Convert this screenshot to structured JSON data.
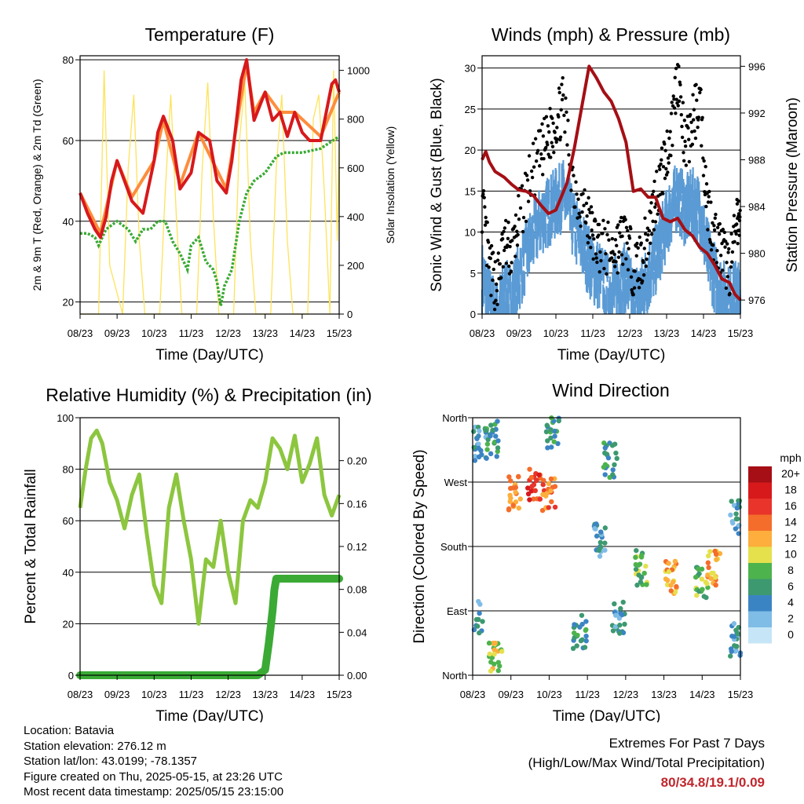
{
  "chart_data": [
    {
      "type": "line",
      "title": "Temperature (F)",
      "xlabel": "Time (Day/UTC)",
      "ylabel": "2m & 9m T (Red, Orange) & 2m Td (Green)",
      "y2label": "Solar Insolation (Yellow)",
      "x_ticks": [
        "08/23",
        "09/23",
        "10/23",
        "11/23",
        "12/23",
        "13/23",
        "14/23",
        "15/23"
      ],
      "ylim": [
        17,
        81
      ],
      "y_ticks": [
        20,
        40,
        60,
        80
      ],
      "y2lim": [
        0,
        1060
      ],
      "y2_ticks": [
        0,
        200,
        400,
        600,
        800,
        1000
      ],
      "grid": "horizontal",
      "series": [
        {
          "role": "2m T",
          "color": "#d7191c",
          "axis": "left",
          "x": [
            0,
            0.2,
            0.4,
            0.55,
            0.7,
            0.85,
            1.0,
            1.2,
            1.4,
            1.7,
            2.0,
            2.1,
            2.25,
            2.5,
            2.7,
            3.0,
            3.2,
            3.5,
            3.7,
            3.95,
            4.1,
            4.35,
            4.5,
            4.7,
            5.0,
            5.2,
            5.4,
            5.6,
            5.8,
            6.0,
            6.2,
            6.5,
            6.8,
            6.9,
            7.0
          ],
          "y": [
            47,
            42,
            38,
            36,
            41,
            50,
            55,
            50,
            45,
            42,
            55,
            62,
            66,
            60,
            48,
            52,
            62,
            60,
            50,
            47,
            55,
            75,
            80,
            65,
            72,
            65,
            67,
            61,
            67,
            62,
            60,
            60,
            74,
            75,
            72
          ]
        },
        {
          "role": "9m T",
          "color": "#fd8d3c",
          "axis": "left",
          "x": [
            0,
            0.55,
            1.0,
            1.4,
            2.0,
            2.25,
            2.7,
            3.2,
            3.95,
            4.5,
            4.7,
            5.0,
            5.4,
            5.8,
            6.5,
            7.0
          ],
          "y": [
            47,
            37,
            55,
            46,
            55,
            65,
            49,
            62,
            48,
            79,
            67,
            72,
            67,
            67,
            61,
            72
          ]
        },
        {
          "role": "2m Td",
          "color": "#3aaa35",
          "axis": "left",
          "x": [
            0,
            0.2,
            0.4,
            0.5,
            0.7,
            1.0,
            1.3,
            1.5,
            1.7,
            1.9,
            2.1,
            2.3,
            2.5,
            2.7,
            2.9,
            3.0,
            3.2,
            3.4,
            3.6,
            3.7,
            3.8,
            3.9,
            4.0,
            4.1,
            4.3,
            4.5,
            4.7,
            5.0,
            5.3,
            5.5,
            5.7,
            6.0,
            6.5,
            7.0
          ],
          "y": [
            37,
            37,
            36,
            34,
            38,
            40,
            38,
            35,
            38,
            38,
            40,
            40,
            35,
            32,
            28,
            34,
            36,
            30,
            28,
            25,
            19,
            24,
            26,
            28,
            40,
            47,
            50,
            52,
            56,
            57,
            57,
            57,
            58,
            61
          ]
        },
        {
          "role": "Solar Insolation",
          "color": "#fde35a",
          "axis": "right",
          "x": [
            0.0,
            0.15,
            0.3,
            0.5,
            0.65,
            0.8,
            1.15,
            1.3,
            1.45,
            1.6,
            1.75,
            2.15,
            2.3,
            2.45,
            2.6,
            2.75,
            3.15,
            3.3,
            3.45,
            3.6,
            3.75,
            4.15,
            4.3,
            4.45,
            4.6,
            4.75,
            5.15,
            5.3,
            5.45,
            5.6,
            5.75,
            6.15,
            6.3,
            6.45,
            6.6,
            6.75,
            6.85,
            6.95,
            7.0
          ],
          "y": [
            0,
            0,
            0,
            0,
            1000,
            200,
            0,
            600,
            900,
            300,
            0,
            0,
            500,
            900,
            400,
            0,
            0,
            600,
            950,
            400,
            0,
            0,
            700,
            950,
            300,
            0,
            0,
            600,
            900,
            300,
            0,
            0,
            800,
            900,
            500,
            0,
            1000,
            300,
            700
          ]
        }
      ]
    },
    {
      "type": "scatter",
      "title": "Winds (mph) & Pressure (mb)",
      "xlabel": "Time (Day/UTC)",
      "ylabel": "Sonic Wind & Gust (Blue, Black)",
      "y2label": "Station Pressure (Maroon)",
      "x_ticks": [
        "08/23",
        "09/23",
        "10/23",
        "11/23",
        "12/23",
        "13/23",
        "14/23",
        "15/23"
      ],
      "ylim": [
        0,
        31.5
      ],
      "y_ticks": [
        0,
        5,
        10,
        15,
        20,
        25,
        30
      ],
      "y2lim": [
        974.8,
        996.9
      ],
      "y2_ticks": [
        976,
        980,
        984,
        988,
        992,
        996
      ],
      "grid": "horizontal",
      "series": [
        {
          "role": "Sonic Wind",
          "color": "#5b9bd5",
          "axis": "left",
          "x": [
            0,
            0.2,
            0.4,
            0.6,
            0.8,
            1.0,
            1.3,
            1.6,
            1.8,
            2.0,
            2.2,
            2.5,
            2.8,
            3.0,
            3.2,
            3.5,
            3.7,
            3.9,
            4.1,
            4.3,
            4.5,
            4.7,
            4.9,
            5.1,
            5.3,
            5.5,
            5.7,
            5.9,
            6.1,
            6.3,
            6.5,
            6.7,
            6.9,
            7.0
          ],
          "y": [
            6,
            3,
            1,
            4,
            3,
            6,
            10,
            13,
            14,
            15,
            16,
            12,
            9,
            7,
            6,
            4,
            5,
            6,
            3,
            4,
            6,
            8,
            11,
            14,
            16,
            14,
            15,
            14,
            9,
            6,
            4,
            3,
            4,
            3
          ]
        },
        {
          "role": "Gust",
          "color": "#000000",
          "axis": "left",
          "x": [
            0,
            0.2,
            0.4,
            0.6,
            0.8,
            1.0,
            1.3,
            1.6,
            1.8,
            2.0,
            2.2,
            2.5,
            2.8,
            3.0,
            3.2,
            3.5,
            3.7,
            3.9,
            4.1,
            4.3,
            4.5,
            4.7,
            4.9,
            5.1,
            5.3,
            5.5,
            5.7,
            5.9,
            6.1,
            6.3,
            6.5,
            6.7,
            6.9,
            7.0
          ],
          "y": [
            14,
            6,
            4,
            9,
            8,
            12,
            17,
            20,
            22,
            24,
            26,
            16,
            13,
            10,
            9,
            8,
            9,
            10,
            6,
            7,
            10,
            15,
            18,
            22,
            30,
            20,
            24,
            27,
            14,
            10,
            8,
            6,
            11,
            12
          ]
        },
        {
          "role": "Station Pressure",
          "color": "#a50f15",
          "axis": "right",
          "x": [
            0,
            0.1,
            0.2,
            0.35,
            0.6,
            0.8,
            1.0,
            1.2,
            1.4,
            1.6,
            1.8,
            2.0,
            2.3,
            2.5,
            2.7,
            2.9,
            3.1,
            3.3,
            3.5,
            3.7,
            3.9,
            4.1,
            4.3,
            4.5,
            4.7,
            4.9,
            5.1,
            5.3,
            5.5,
            5.7,
            5.9,
            6.1,
            6.3,
            6.5,
            6.7,
            6.85,
            7.0
          ],
          "y": [
            988,
            988.7,
            987.8,
            987,
            986.5,
            985.9,
            985.4,
            985.3,
            984.9,
            984.1,
            983.4,
            983.7,
            986,
            989,
            992.5,
            996,
            995,
            993.8,
            993,
            991.5,
            989.5,
            985.3,
            985.5,
            984.8,
            984.8,
            983,
            982.7,
            983,
            982,
            981.5,
            980.5,
            980,
            979,
            977.8,
            977.5,
            976.5,
            976
          ]
        }
      ]
    },
    {
      "type": "line",
      "title": "Relative Humidity (%) & Precipitation (in)",
      "xlabel": "Time (Day/UTC)",
      "ylabel": "Percent & Total Rainfall",
      "x_ticks": [
        "08/23",
        "09/23",
        "10/23",
        "11/23",
        "12/23",
        "13/23",
        "14/23",
        "15/23"
      ],
      "ylim": [
        0,
        100
      ],
      "y_ticks": [
        0,
        20,
        40,
        60,
        80,
        100
      ],
      "y2lim": [
        0,
        0.24
      ],
      "y2_ticks": [
        0.0,
        0.04,
        0.08,
        0.12,
        0.16,
        0.2
      ],
      "grid": "horizontal",
      "series": [
        {
          "role": "Relative Humidity",
          "color": "#8cc63f",
          "axis": "left",
          "x": [
            0,
            0.15,
            0.3,
            0.45,
            0.6,
            0.8,
            1.0,
            1.2,
            1.4,
            1.6,
            1.8,
            2.0,
            2.2,
            2.4,
            2.6,
            2.8,
            3.0,
            3.2,
            3.4,
            3.6,
            3.8,
            4.0,
            4.2,
            4.4,
            4.6,
            4.8,
            5.0,
            5.2,
            5.4,
            5.6,
            5.8,
            6.0,
            6.2,
            6.4,
            6.6,
            6.8,
            7.0
          ],
          "y": [
            65,
            80,
            92,
            95,
            90,
            75,
            68,
            57,
            70,
            78,
            55,
            35,
            28,
            65,
            78,
            60,
            45,
            20,
            45,
            42,
            60,
            40,
            28,
            60,
            68,
            65,
            75,
            92,
            88,
            80,
            93,
            75,
            82,
            92,
            70,
            62,
            70
          ]
        },
        {
          "role": "Total Precipitation",
          "color": "#3aaa35",
          "axis": "right",
          "x": [
            0,
            4.8,
            5.0,
            5.1,
            5.2,
            5.25,
            5.3,
            7.0
          ],
          "y": [
            0,
            0,
            0.005,
            0.03,
            0.06,
            0.08,
            0.09,
            0.09
          ]
        }
      ]
    },
    {
      "type": "scatter",
      "title": "Wind Direction",
      "xlabel": "Time (Day/UTC)",
      "ylabel": "Direction (Colored By Speed)",
      "x_ticks": [
        "08/23",
        "09/23",
        "10/23",
        "11/23",
        "12/23",
        "13/23",
        "14/23",
        "15/23"
      ],
      "y_ticks": [
        "North",
        "East",
        "South",
        "West",
        "North"
      ],
      "ylim": [
        0,
        360
      ],
      "grid": "horizontal",
      "legend": {
        "title": "mph",
        "placement": "right",
        "labels": [
          "20+",
          "18",
          "16",
          "14",
          "12",
          "10",
          "8",
          "6",
          "4",
          "2",
          "0"
        ],
        "colors": [
          "#a50f15",
          "#d7191c",
          "#e8342b",
          "#f46d2b",
          "#fdae3c",
          "#e5e14d",
          "#4db34d",
          "#3d9970",
          "#3b84c4",
          "#7fbce6",
          "#c6e6f7"
        ]
      },
      "clusters": [
        {
          "x": 0.2,
          "y": 325,
          "speed": 4
        },
        {
          "x": 0.1,
          "y": 80,
          "speed": 4
        },
        {
          "x": 0.6,
          "y": 25,
          "speed": 10
        },
        {
          "x": 0.5,
          "y": 330,
          "speed": 6
        },
        {
          "x": 1.1,
          "y": 255,
          "speed": 14
        },
        {
          "x": 1.6,
          "y": 265,
          "speed": 16
        },
        {
          "x": 2.0,
          "y": 250,
          "speed": 14
        },
        {
          "x": 2.1,
          "y": 340,
          "speed": 6
        },
        {
          "x": 2.8,
          "y": 60,
          "speed": 6
        },
        {
          "x": 3.3,
          "y": 190,
          "speed": 4
        },
        {
          "x": 3.6,
          "y": 300,
          "speed": 6
        },
        {
          "x": 3.8,
          "y": 80,
          "speed": 4
        },
        {
          "x": 4.4,
          "y": 150,
          "speed": 8
        },
        {
          "x": 5.2,
          "y": 135,
          "speed": 12
        },
        {
          "x": 6.0,
          "y": 132,
          "speed": 8
        },
        {
          "x": 6.3,
          "y": 150,
          "speed": 12
        },
        {
          "x": 6.9,
          "y": 220,
          "speed": 4
        },
        {
          "x": 6.9,
          "y": 50,
          "speed": 4
        }
      ]
    }
  ],
  "info": {
    "location": "Location: Batavia",
    "elevation": "Station elevation: 276.12 m",
    "latlon": "Station lat/lon: 43.0199; -78.1357",
    "created": "Figure created on Thu, 2025-05-15, at 23:26 UTC",
    "recent": "Most recent data timestamp: 2025/05/15 23:15:00"
  },
  "extremes": {
    "title": "Extremes For Past 7 Days",
    "subtitle": "(High/Low/Max Wind/Total Precipitation)",
    "values": "80/34.8/19.1/0.09"
  }
}
